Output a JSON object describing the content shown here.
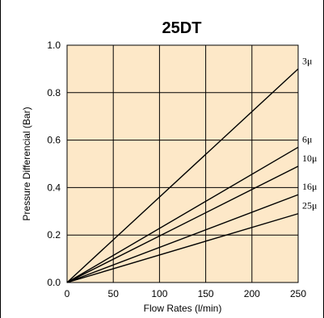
{
  "chart_data": {
    "type": "line",
    "title": "25DT",
    "xlabel": "Flow Rates (l/min)",
    "ylabel": "Pressure Differencial (Bar)",
    "xlim": [
      0,
      250
    ],
    "ylim": [
      0,
      1.0
    ],
    "x_ticks": [
      "0",
      "50",
      "100",
      "150",
      "200",
      "250"
    ],
    "y_ticks": [
      "0.0",
      "0.2",
      "0.4",
      "0.6",
      "0.8",
      "1.0"
    ],
    "grid": true,
    "background_color": "#fde8c8",
    "line_color": "#000000",
    "series": [
      {
        "name": "3μ",
        "x": [
          0,
          250
        ],
        "y": [
          0,
          0.9
        ]
      },
      {
        "name": "6μ",
        "x": [
          0,
          250
        ],
        "y": [
          0,
          0.57
        ]
      },
      {
        "name": "10μ",
        "x": [
          0,
          250
        ],
        "y": [
          0,
          0.49
        ]
      },
      {
        "name": "16μ",
        "x": [
          0,
          250
        ],
        "y": [
          0,
          0.37
        ]
      },
      {
        "name": "25μ",
        "x": [
          0,
          250
        ],
        "y": [
          0,
          0.29
        ]
      }
    ]
  }
}
